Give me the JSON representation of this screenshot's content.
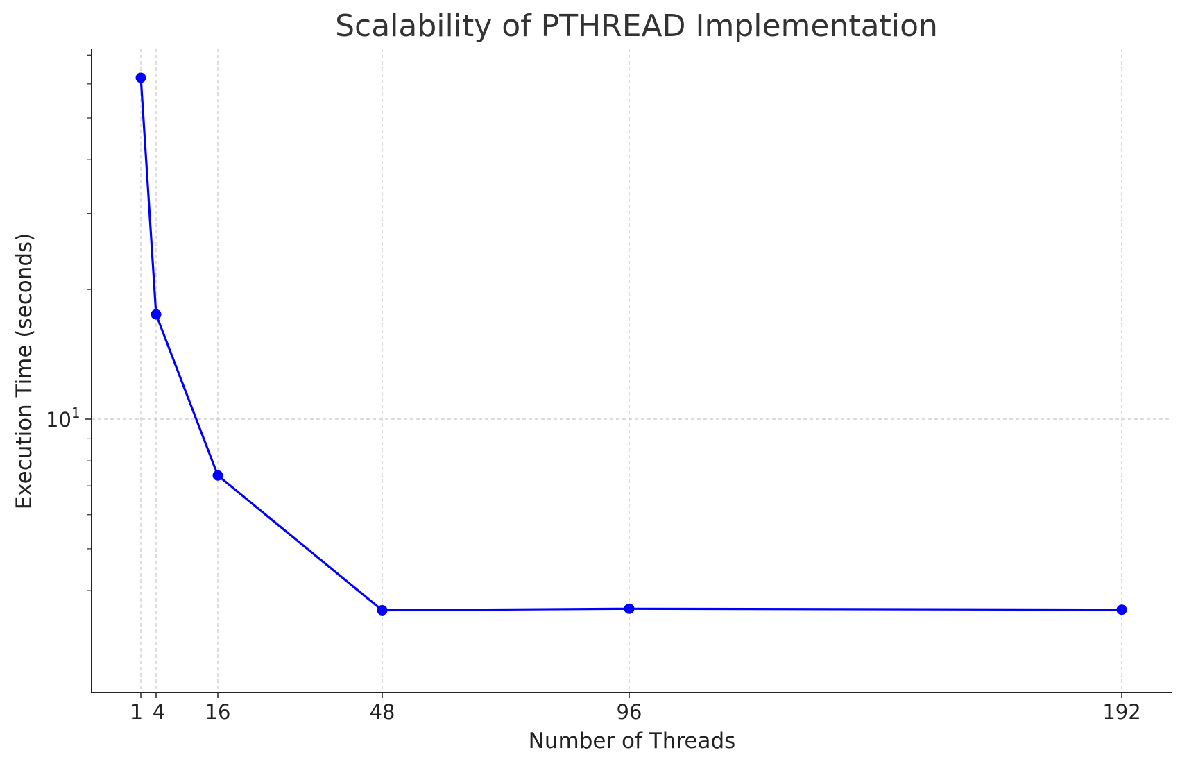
{
  "chart_data": {
    "type": "line",
    "title": "Scalability of PTHREAD Implementation",
    "xlabel": "Number of Threads",
    "ylabel": "Execution Time (seconds)",
    "y_scale": "log",
    "grid": true,
    "x_ticks": [
      "1",
      "4",
      "16",
      "48",
      "96",
      "192"
    ],
    "y_ticks": [
      {
        "value": 10,
        "label": "10",
        "exponent": "1"
      }
    ],
    "series": [
      {
        "color": "#0000ff",
        "x": [
          1,
          4,
          16,
          48,
          96,
          192
        ],
        "y": [
          62,
          17.5,
          7.4,
          3.6,
          3.63,
          3.61
        ]
      }
    ]
  }
}
